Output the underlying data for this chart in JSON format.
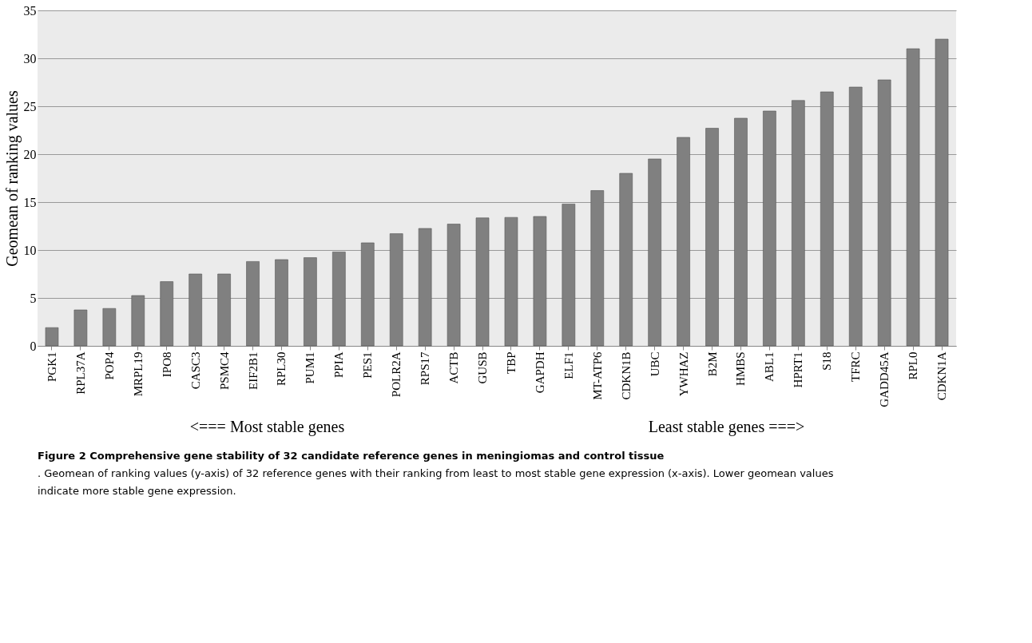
{
  "chart_data": {
    "type": "bar",
    "ylabel": "Geomean of ranking values",
    "categories": [
      "PGK1",
      "RPL37A",
      "POP4",
      "MRPL19",
      "IPO8",
      "CASC3",
      "PSMC4",
      "EIF2B1",
      "RPL30",
      "PUM1",
      "PPIA",
      "PES1",
      "POLR2A",
      "RPS17",
      "ACTB",
      "GUSB",
      "TBP",
      "GAPDH",
      "ELF1",
      "MT-ATP6",
      "CDKN1B",
      "UBC",
      "YWHAZ",
      "B2M",
      "HMBS",
      "ABL1",
      "HPRT1",
      "S18",
      "TFRC",
      "GADD45A",
      "RPL0",
      "CDKN1A"
    ],
    "values": [
      1.9,
      3.75,
      3.9,
      5.25,
      6.7,
      7.5,
      7.5,
      8.8,
      9.0,
      9.2,
      9.8,
      10.75,
      11.7,
      12.25,
      12.7,
      13.35,
      13.4,
      13.5,
      14.8,
      16.2,
      18,
      19.5,
      21.75,
      22.7,
      23.75,
      24.5,
      25.6,
      26.5,
      27,
      27.75,
      31,
      32
    ],
    "color": "#808080",
    "ylim": [
      0,
      35
    ],
    "yticks": [
      0,
      5,
      10,
      15,
      20,
      25,
      30,
      35
    ],
    "grid": "y",
    "annotations": [
      "<===   Most stable genes",
      "Least stable genes   ===>",
      "Figure 2 Comprehensive gene stability of 32 candidate reference genes in meningiomas and control tissue",
      ". Geomean of ranking values (y-axis) of 32 reference genes with their ranking from least to most stable gene expression (x-axis). Lower geomean values indicate more stable gene expression."
    ]
  }
}
